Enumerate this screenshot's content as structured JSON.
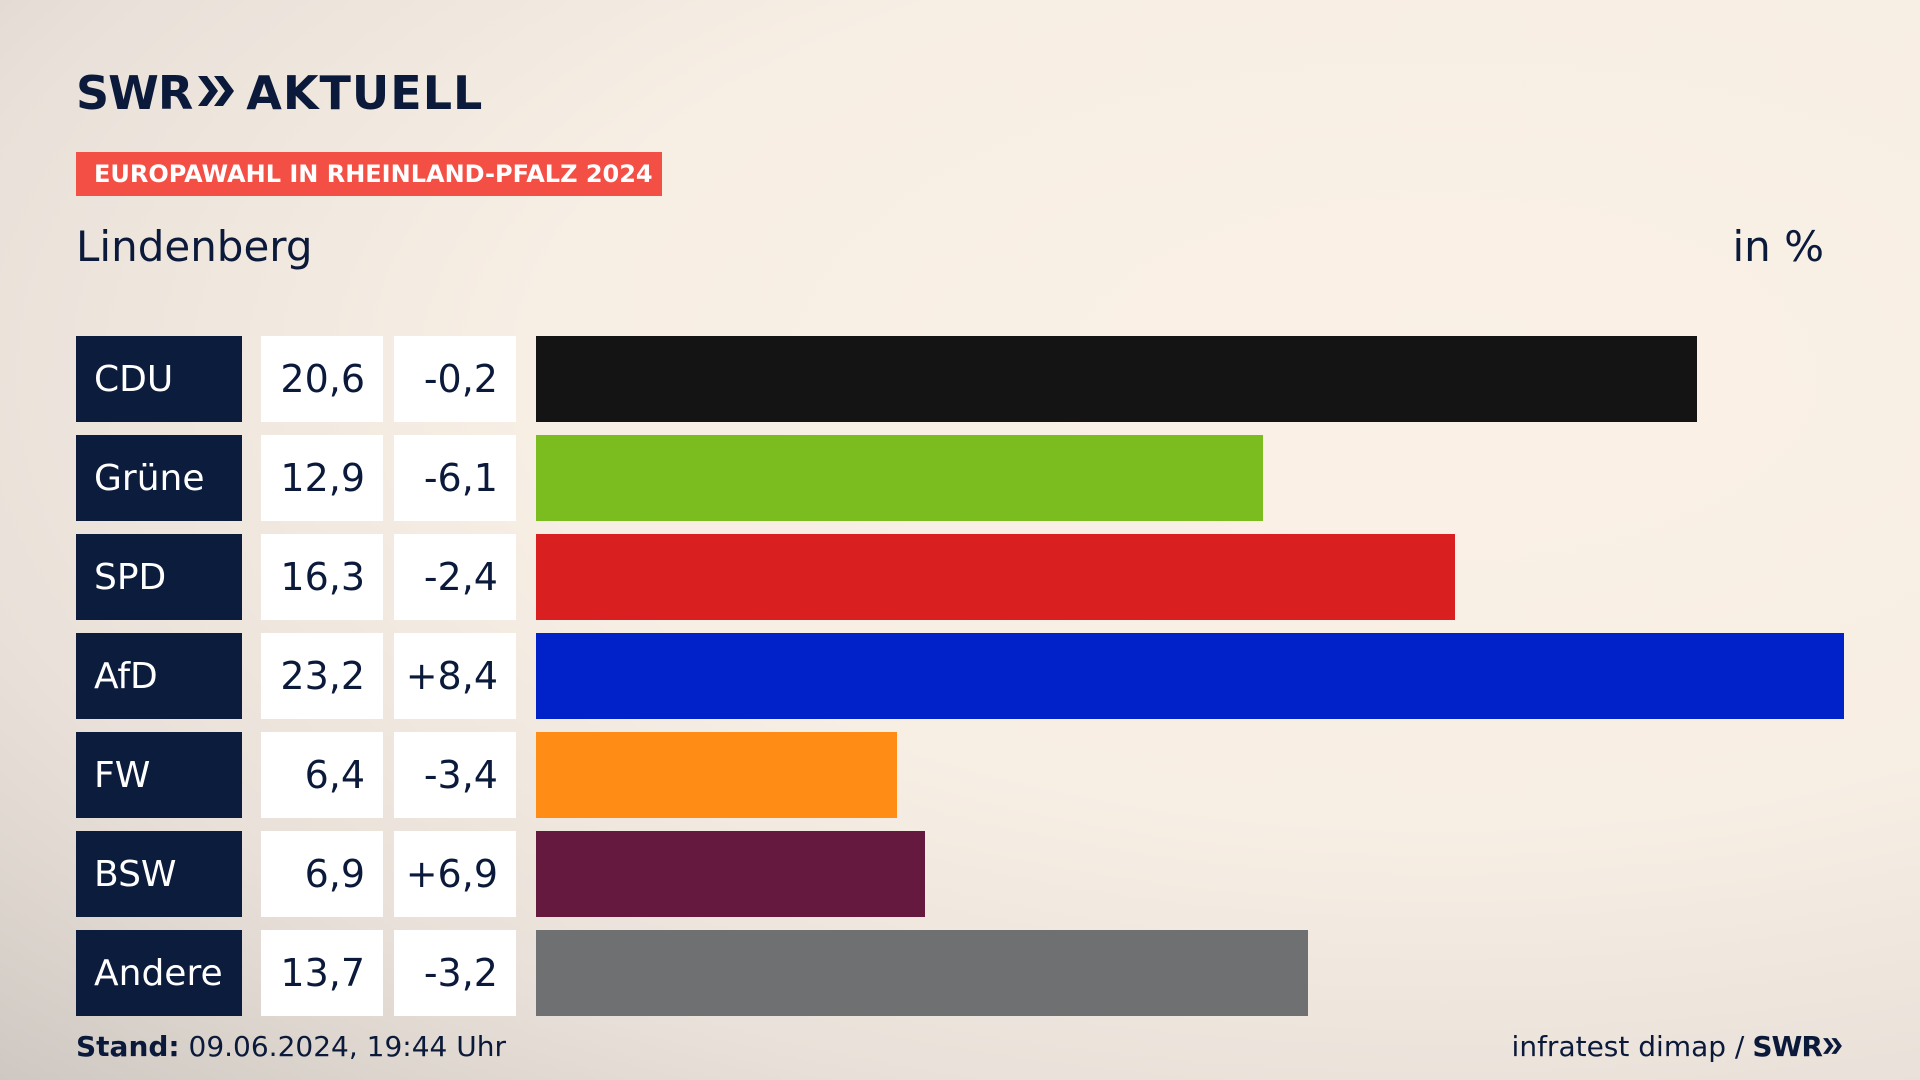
{
  "brand": {
    "swr": "SWR",
    "aktuell": "AKTUELL",
    "chevron_icon": "double-chevron-right-icon"
  },
  "tag": "EUROPAWAHL IN RHEINLAND-PFALZ 2024",
  "region": "Lindenberg",
  "unit": "in %",
  "chart_data": {
    "type": "bar",
    "orientation": "horizontal",
    "categories": [
      "CDU",
      "Grüne",
      "SPD",
      "AfD",
      "FW",
      "BSW",
      "Andere"
    ],
    "values": [
      20.6,
      12.9,
      16.3,
      23.2,
      6.4,
      6.9,
      13.7
    ],
    "values_label": [
      "20,6",
      "12,9",
      "16,3",
      "23,2",
      "6,4",
      "6,9",
      "13,7"
    ],
    "diff_label": [
      "-0,2",
      "-6,1",
      "-2,4",
      "+8,4",
      "-3,4",
      "+6,9",
      "-3,2"
    ],
    "colors": [
      "#141414",
      "#7bbd1e",
      "#d91f1f",
      "#0022c8",
      "#ff8c14",
      "#65193e",
      "#6f7072"
    ]
  },
  "footer": {
    "stand_label": "Stand:",
    "stand_value": " 09.06.2024, 19:44 Uhr",
    "source": "infratest dimap /",
    "source_brand": "SWR"
  }
}
